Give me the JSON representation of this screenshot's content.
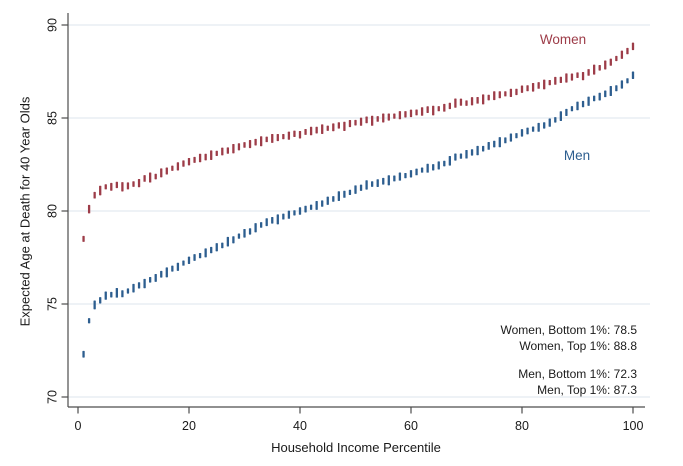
{
  "chart_data": {
    "type": "scatter",
    "title": "",
    "xlabel": "Household Income Percentile",
    "ylabel": "Expected Age at Death for 40 Year Olds",
    "x_ticks": [
      0,
      20,
      40,
      60,
      80,
      100
    ],
    "y_ticks": [
      70,
      75,
      80,
      85,
      90
    ],
    "xlim": [
      -2,
      102
    ],
    "ylim": [
      69.4,
      90.7
    ],
    "grid": "horizontal-only",
    "marker": "vertical-dash-ci",
    "legend_position": "labels-near-series",
    "colors": {
      "background": "#ffffff",
      "gridline": "#dde6ee",
      "axis": "#4d4d4d",
      "text": "#1a1a1a"
    },
    "series": [
      {
        "name": "Women",
        "color": "#9d3c48",
        "x_start_percentile": 1,
        "values": [
          78.5,
          80.1,
          80.85,
          81.1,
          81.3,
          81.3,
          81.4,
          81.3,
          81.35,
          81.45,
          81.5,
          81.75,
          81.8,
          81.85,
          82.05,
          82.15,
          82.3,
          82.4,
          82.55,
          82.65,
          82.75,
          82.85,
          82.9,
          83.0,
          83.1,
          83.2,
          83.25,
          83.35,
          83.45,
          83.55,
          83.6,
          83.7,
          83.75,
          83.85,
          83.9,
          83.95,
          84.0,
          84.05,
          84.15,
          84.1,
          84.25,
          84.3,
          84.35,
          84.4,
          84.45,
          84.5,
          84.6,
          84.55,
          84.7,
          84.75,
          84.8,
          84.9,
          84.85,
          84.95,
          85.0,
          85.05,
          85.1,
          85.15,
          85.2,
          85.25,
          85.3,
          85.35,
          85.45,
          85.4,
          85.5,
          85.55,
          85.65,
          85.8,
          85.85,
          85.8,
          85.9,
          85.95,
          86.0,
          86.1,
          86.2,
          86.25,
          86.3,
          86.35,
          86.4,
          86.55,
          86.6,
          86.65,
          86.75,
          86.8,
          86.9,
          87.0,
          87.05,
          87.15,
          87.2,
          87.3,
          87.25,
          87.45,
          87.6,
          87.7,
          87.85,
          88.0,
          88.2,
          88.4,
          88.6,
          88.85
        ],
        "ci_halfwidths": [
          0.16,
          0.23,
          0.18,
          0.26,
          0.14,
          0.21,
          0.17,
          0.25,
          0.19,
          0.15,
          0.22,
          0.18,
          0.27,
          0.15,
          0.24,
          0.19,
          0.14,
          0.22,
          0.17,
          0.2
        ]
      },
      {
        "name": "Men",
        "color": "#2d5e8f",
        "x_start_percentile": 1,
        "values": [
          72.3,
          74.1,
          74.95,
          75.2,
          75.45,
          75.5,
          75.6,
          75.55,
          75.7,
          75.85,
          76.0,
          76.1,
          76.3,
          76.4,
          76.6,
          76.7,
          76.9,
          77.0,
          77.2,
          77.35,
          77.5,
          77.6,
          77.75,
          77.9,
          78.05,
          78.15,
          78.35,
          78.45,
          78.65,
          78.8,
          78.9,
          79.1,
          79.25,
          79.4,
          79.5,
          79.55,
          79.7,
          79.8,
          79.9,
          80.0,
          80.1,
          80.2,
          80.3,
          80.4,
          80.55,
          80.65,
          80.8,
          80.9,
          81.0,
          81.15,
          81.25,
          81.4,
          81.45,
          81.5,
          81.6,
          81.65,
          81.75,
          81.85,
          81.9,
          82.0,
          82.1,
          82.2,
          82.3,
          82.35,
          82.45,
          82.55,
          82.7,
          82.9,
          82.95,
          83.05,
          83.15,
          83.25,
          83.35,
          83.5,
          83.6,
          83.7,
          83.8,
          83.95,
          84.05,
          84.2,
          84.3,
          84.4,
          84.5,
          84.6,
          84.75,
          84.9,
          85.1,
          85.3,
          85.5,
          85.65,
          85.75,
          85.9,
          86.05,
          86.15,
          86.3,
          86.45,
          86.6,
          86.8,
          87.0,
          87.3
        ],
        "ci_halfwidths": [
          0.18,
          0.14,
          0.24,
          0.17,
          0.22,
          0.15,
          0.26,
          0.19,
          0.14,
          0.23,
          0.17,
          0.25,
          0.15,
          0.21,
          0.18,
          0.27,
          0.16,
          0.22,
          0.14,
          0.2
        ]
      }
    ],
    "annotations": [
      "Women, Bottom 1%: 78.5",
      "Women, Top 1%: 88.8",
      "Men, Bottom 1%: 72.3",
      "Men, Top 1%: 87.3"
    ]
  }
}
